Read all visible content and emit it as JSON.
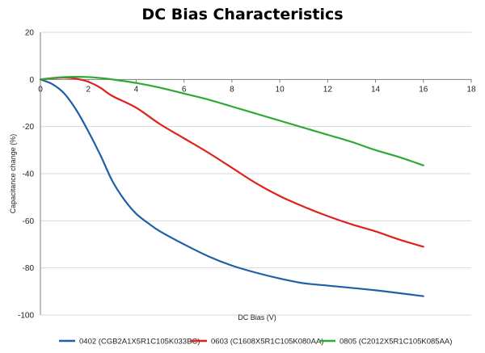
{
  "chart_data": {
    "type": "line",
    "title": "DC Bias Characteristics",
    "xlabel": "DC Bias (V)",
    "ylabel": "Capacitance change (%)",
    "xlim": [
      0,
      18
    ],
    "ylim": [
      -100,
      20
    ],
    "x_ticks": [
      0,
      2,
      4,
      6,
      8,
      10,
      12,
      14,
      16,
      18
    ],
    "y_ticks": [
      20,
      0,
      -20,
      -40,
      -60,
      -80,
      -100
    ],
    "grid": "horizontal",
    "legend_position": "bottom",
    "series": [
      {
        "name": "0402 (CGB2A1X5R1C105K033BC)",
        "color": "#1f5fa8",
        "points": [
          [
            0,
            0
          ],
          [
            0.5,
            -2
          ],
          [
            1,
            -6
          ],
          [
            1.5,
            -13
          ],
          [
            2,
            -22
          ],
          [
            2.5,
            -32
          ],
          [
            3,
            -43
          ],
          [
            3.5,
            -51
          ],
          [
            4,
            -57
          ],
          [
            4.5,
            -61
          ],
          [
            5,
            -64.5
          ],
          [
            6,
            -70
          ],
          [
            7,
            -75
          ],
          [
            8,
            -79
          ],
          [
            9,
            -82
          ],
          [
            10,
            -84.5
          ],
          [
            11,
            -86.5
          ],
          [
            12,
            -87.5
          ],
          [
            14,
            -89.5
          ],
          [
            16,
            -92
          ]
        ]
      },
      {
        "name": "0603 (C1608X5R1C105K080AA)",
        "color": "#e0201b",
        "points": [
          [
            0,
            0
          ],
          [
            0.5,
            0.5
          ],
          [
            1,
            0.8
          ],
          [
            1.5,
            0.3
          ],
          [
            2,
            -1
          ],
          [
            2.5,
            -3.5
          ],
          [
            3,
            -7
          ],
          [
            4,
            -12
          ],
          [
            5,
            -19
          ],
          [
            6,
            -25
          ],
          [
            7,
            -31
          ],
          [
            8,
            -37.5
          ],
          [
            9,
            -44
          ],
          [
            10,
            -49.5
          ],
          [
            11,
            -54
          ],
          [
            12,
            -58
          ],
          [
            13,
            -61.5
          ],
          [
            14,
            -64.5
          ],
          [
            15,
            -68
          ],
          [
            16,
            -71
          ]
        ]
      },
      {
        "name": "0805 (C2012X5R1C105K085AA)",
        "color": "#2fa836",
        "points": [
          [
            0,
            0
          ],
          [
            0.5,
            0.6
          ],
          [
            1,
            1.0
          ],
          [
            1.5,
            1.1
          ],
          [
            2,
            1.0
          ],
          [
            2.5,
            0.6
          ],
          [
            3,
            0
          ],
          [
            4,
            -1.5
          ],
          [
            5,
            -3.5
          ],
          [
            6,
            -6
          ],
          [
            7,
            -8.5
          ],
          [
            8,
            -11.5
          ],
          [
            9,
            -14.5
          ],
          [
            10,
            -17.5
          ],
          [
            11,
            -20.5
          ],
          [
            12,
            -23.5
          ],
          [
            13,
            -26.5
          ],
          [
            14,
            -30
          ],
          [
            15,
            -33
          ],
          [
            16,
            -36.5
          ]
        ]
      }
    ]
  }
}
